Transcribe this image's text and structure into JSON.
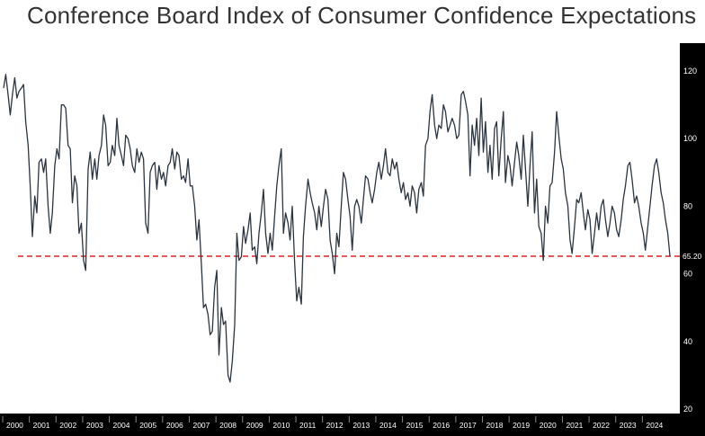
{
  "chart_data": {
    "type": "line",
    "title": "Conference Board Index of Consumer Confidence Expectations",
    "xlabel": "",
    "ylabel": "",
    "x_ticks": [
      "2000",
      "2001",
      "2002",
      "2003",
      "2004",
      "2005",
      "2006",
      "2007",
      "2008",
      "2009",
      "2010",
      "2011",
      "2012",
      "2013",
      "2014",
      "2015",
      "2016",
      "2017",
      "2018",
      "2019",
      "2020",
      "2021",
      "2022",
      "2023",
      "2024"
    ],
    "y_ticks": [
      20,
      40,
      60,
      80,
      100,
      120
    ],
    "ylim": [
      20,
      124
    ],
    "xlim": [
      2000.0,
      2025.2
    ],
    "grid": false,
    "reference_line": {
      "value": 65.2,
      "label": "65.20",
      "color": "#e02020",
      "style": "dashed"
    },
    "series": [
      {
        "color": "#2b3440",
        "points": [
          [
            2000.0,
            115
          ],
          [
            2000.08,
            119
          ],
          [
            2000.17,
            113
          ],
          [
            2000.25,
            107
          ],
          [
            2000.33,
            113
          ],
          [
            2000.42,
            118
          ],
          [
            2000.5,
            112
          ],
          [
            2000.58,
            114
          ],
          [
            2000.67,
            115
          ],
          [
            2000.75,
            116
          ],
          [
            2000.83,
            105
          ],
          [
            2000.92,
            98
          ],
          [
            2001.0,
            86
          ],
          [
            2001.08,
            71
          ],
          [
            2001.17,
            83
          ],
          [
            2001.25,
            78
          ],
          [
            2001.33,
            93
          ],
          [
            2001.42,
            94
          ],
          [
            2001.5,
            90
          ],
          [
            2001.58,
            94
          ],
          [
            2001.67,
            80
          ],
          [
            2001.75,
            72
          ],
          [
            2001.83,
            78
          ],
          [
            2001.92,
            92
          ],
          [
            2002.0,
            97
          ],
          [
            2002.08,
            94
          ],
          [
            2002.17,
            110
          ],
          [
            2002.25,
            110
          ],
          [
            2002.33,
            109
          ],
          [
            2002.42,
            98
          ],
          [
            2002.5,
            97
          ],
          [
            2002.58,
            81
          ],
          [
            2002.67,
            89
          ],
          [
            2002.75,
            86
          ],
          [
            2002.83,
            72
          ],
          [
            2002.92,
            75
          ],
          [
            2003.0,
            64
          ],
          [
            2003.08,
            61
          ],
          [
            2003.17,
            91
          ],
          [
            2003.25,
            96
          ],
          [
            2003.33,
            88
          ],
          [
            2003.42,
            94
          ],
          [
            2003.5,
            88
          ],
          [
            2003.58,
            95
          ],
          [
            2003.67,
            98
          ],
          [
            2003.75,
            107
          ],
          [
            2003.83,
            104
          ],
          [
            2003.92,
            92
          ],
          [
            2004.0,
            93
          ],
          [
            2004.08,
            98
          ],
          [
            2004.17,
            95
          ],
          [
            2004.25,
            106
          ],
          [
            2004.33,
            98
          ],
          [
            2004.42,
            95
          ],
          [
            2004.5,
            92
          ],
          [
            2004.58,
            101
          ],
          [
            2004.67,
            100
          ],
          [
            2004.75,
            97
          ],
          [
            2004.83,
            92
          ],
          [
            2004.92,
            90
          ],
          [
            2005.0,
            97
          ],
          [
            2005.08,
            93
          ],
          [
            2005.17,
            96
          ],
          [
            2005.25,
            94
          ],
          [
            2005.33,
            75
          ],
          [
            2005.42,
            72
          ],
          [
            2005.5,
            90
          ],
          [
            2005.58,
            92
          ],
          [
            2005.67,
            93
          ],
          [
            2005.75,
            85
          ],
          [
            2005.83,
            92
          ],
          [
            2005.92,
            88
          ],
          [
            2006.0,
            90
          ],
          [
            2006.08,
            86
          ],
          [
            2006.17,
            92
          ],
          [
            2006.25,
            93
          ],
          [
            2006.33,
            97
          ],
          [
            2006.42,
            91
          ],
          [
            2006.5,
            96
          ],
          [
            2006.58,
            95
          ],
          [
            2006.67,
            88
          ],
          [
            2006.75,
            89
          ],
          [
            2006.83,
            87
          ],
          [
            2006.92,
            94
          ],
          [
            2007.0,
            86
          ],
          [
            2007.08,
            86
          ],
          [
            2007.17,
            80
          ],
          [
            2007.25,
            70
          ],
          [
            2007.33,
            76
          ],
          [
            2007.42,
            63
          ],
          [
            2007.5,
            50
          ],
          [
            2007.58,
            51
          ],
          [
            2007.67,
            48
          ],
          [
            2007.75,
            42
          ],
          [
            2007.83,
            43
          ],
          [
            2007.92,
            56
          ],
          [
            2008.0,
            61
          ],
          [
            2008.08,
            36
          ],
          [
            2008.17,
            50
          ],
          [
            2008.25,
            45
          ],
          [
            2008.33,
            46
          ],
          [
            2008.42,
            30
          ],
          [
            2008.5,
            28
          ],
          [
            2008.58,
            34
          ],
          [
            2008.67,
            45
          ],
          [
            2008.75,
            72
          ],
          [
            2008.83,
            64
          ],
          [
            2008.92,
            65
          ],
          [
            2009.0,
            74
          ],
          [
            2009.08,
            69
          ],
          [
            2009.17,
            73
          ],
          [
            2009.25,
            78
          ],
          [
            2009.33,
            67
          ],
          [
            2009.42,
            68
          ],
          [
            2009.5,
            63
          ],
          [
            2009.58,
            72
          ],
          [
            2009.67,
            78
          ],
          [
            2009.75,
            85
          ],
          [
            2009.83,
            72
          ],
          [
            2009.92,
            66
          ],
          [
            2010.0,
            72
          ],
          [
            2010.08,
            67
          ],
          [
            2010.17,
            77
          ],
          [
            2010.25,
            86
          ],
          [
            2010.33,
            92
          ],
          [
            2010.42,
            97
          ],
          [
            2010.5,
            72
          ],
          [
            2010.58,
            78
          ],
          [
            2010.67,
            75
          ],
          [
            2010.75,
            70
          ],
          [
            2010.83,
            80
          ],
          [
            2010.92,
            63
          ],
          [
            2011.0,
            52
          ],
          [
            2011.08,
            56
          ],
          [
            2011.17,
            51
          ],
          [
            2011.25,
            71
          ],
          [
            2011.33,
            80
          ],
          [
            2011.42,
            88
          ],
          [
            2011.5,
            84
          ],
          [
            2011.58,
            81
          ],
          [
            2011.67,
            78
          ],
          [
            2011.75,
            73
          ],
          [
            2011.83,
            80
          ],
          [
            2011.92,
            74
          ],
          [
            2012.0,
            80
          ],
          [
            2012.08,
            85
          ],
          [
            2012.17,
            82
          ],
          [
            2012.25,
            70
          ],
          [
            2012.33,
            66
          ],
          [
            2012.42,
            60
          ],
          [
            2012.5,
            72
          ],
          [
            2012.58,
            68
          ],
          [
            2012.67,
            80
          ],
          [
            2012.75,
            90
          ],
          [
            2012.83,
            88
          ],
          [
            2012.92,
            82
          ],
          [
            2013.0,
            77
          ],
          [
            2013.08,
            67
          ],
          [
            2013.17,
            80
          ],
          [
            2013.25,
            82
          ],
          [
            2013.33,
            80
          ],
          [
            2013.42,
            75
          ],
          [
            2013.5,
            82
          ],
          [
            2013.58,
            89
          ],
          [
            2013.67,
            88
          ],
          [
            2013.75,
            84
          ],
          [
            2013.83,
            81
          ],
          [
            2013.92,
            85
          ],
          [
            2014.0,
            90
          ],
          [
            2014.08,
            93
          ],
          [
            2014.17,
            88
          ],
          [
            2014.25,
            92
          ],
          [
            2014.33,
            97
          ],
          [
            2014.42,
            90
          ],
          [
            2014.5,
            89
          ],
          [
            2014.58,
            94
          ],
          [
            2014.67,
            91
          ],
          [
            2014.75,
            93
          ],
          [
            2014.83,
            88
          ],
          [
            2014.92,
            84
          ],
          [
            2015.0,
            87
          ],
          [
            2015.08,
            82
          ],
          [
            2015.17,
            84
          ],
          [
            2015.25,
            80
          ],
          [
            2015.33,
            86
          ],
          [
            2015.42,
            84
          ],
          [
            2015.5,
            78
          ],
          [
            2015.58,
            85
          ],
          [
            2015.67,
            87
          ],
          [
            2015.75,
            83
          ],
          [
            2015.83,
            98
          ],
          [
            2015.92,
            100
          ],
          [
            2016.0,
            108
          ],
          [
            2016.08,
            113
          ],
          [
            2016.17,
            104
          ],
          [
            2016.25,
            100
          ],
          [
            2016.33,
            104
          ],
          [
            2016.42,
            103
          ],
          [
            2016.5,
            110
          ],
          [
            2016.58,
            108
          ],
          [
            2016.67,
            102
          ],
          [
            2016.75,
            104
          ],
          [
            2016.83,
            106
          ],
          [
            2016.92,
            104
          ],
          [
            2017.0,
            100
          ],
          [
            2017.08,
            101
          ],
          [
            2017.17,
            113
          ],
          [
            2017.25,
            114
          ],
          [
            2017.33,
            111
          ],
          [
            2017.42,
            107
          ],
          [
            2017.5,
            89
          ],
          [
            2017.58,
            104
          ],
          [
            2017.67,
            98
          ],
          [
            2017.75,
            106
          ],
          [
            2017.83,
            95
          ],
          [
            2017.92,
            112
          ],
          [
            2018.0,
            96
          ],
          [
            2018.08,
            105
          ],
          [
            2018.17,
            90
          ],
          [
            2018.25,
            98
          ],
          [
            2018.33,
            88
          ],
          [
            2018.42,
            103
          ],
          [
            2018.5,
            105
          ],
          [
            2018.58,
            89
          ],
          [
            2018.67,
            100
          ],
          [
            2018.75,
            108
          ],
          [
            2018.83,
            87
          ],
          [
            2018.92,
            95
          ],
          [
            2019.0,
            92
          ],
          [
            2019.08,
            86
          ],
          [
            2019.17,
            93
          ],
          [
            2019.25,
            99
          ],
          [
            2019.33,
            95
          ],
          [
            2019.42,
            88
          ],
          [
            2019.5,
            101
          ],
          [
            2019.58,
            91
          ],
          [
            2019.67,
            80
          ],
          [
            2019.75,
            92
          ],
          [
            2019.83,
            102
          ],
          [
            2019.92,
            78
          ],
          [
            2020.0,
            88
          ],
          [
            2020.08,
            74
          ],
          [
            2020.17,
            72
          ],
          [
            2020.25,
            64
          ],
          [
            2020.33,
            80
          ],
          [
            2020.42,
            75
          ],
          [
            2020.5,
            86
          ],
          [
            2020.58,
            87
          ],
          [
            2020.67,
            96
          ],
          [
            2020.75,
            108
          ],
          [
            2020.83,
            101
          ],
          [
            2020.92,
            94
          ],
          [
            2021.0,
            91
          ],
          [
            2021.08,
            84
          ],
          [
            2021.17,
            80
          ],
          [
            2021.25,
            70
          ],
          [
            2021.33,
            66
          ],
          [
            2021.42,
            74
          ],
          [
            2021.5,
            82
          ],
          [
            2021.58,
            81
          ],
          [
            2021.67,
            84
          ],
          [
            2021.75,
            78
          ],
          [
            2021.83,
            73
          ],
          [
            2021.92,
            79
          ],
          [
            2022.0,
            76
          ],
          [
            2022.08,
            66
          ],
          [
            2022.17,
            72
          ],
          [
            2022.25,
            78
          ],
          [
            2022.33,
            73
          ],
          [
            2022.42,
            80
          ],
          [
            2022.5,
            82
          ],
          [
            2022.58,
            76
          ],
          [
            2022.67,
            71
          ],
          [
            2022.75,
            75
          ],
          [
            2022.83,
            80
          ],
          [
            2022.92,
            78
          ],
          [
            2023.0,
            73
          ],
          [
            2023.08,
            71
          ],
          [
            2023.17,
            76
          ],
          [
            2023.25,
            82
          ],
          [
            2023.33,
            86
          ],
          [
            2023.42,
            92
          ],
          [
            2023.5,
            93
          ],
          [
            2023.58,
            88
          ],
          [
            2023.67,
            81
          ],
          [
            2023.75,
            83
          ],
          [
            2023.83,
            80
          ],
          [
            2023.92,
            75
          ],
          [
            2024.0,
            72
          ],
          [
            2024.08,
            67
          ],
          [
            2024.17,
            74
          ],
          [
            2024.25,
            80
          ],
          [
            2024.33,
            86
          ],
          [
            2024.42,
            92
          ],
          [
            2024.5,
            94
          ],
          [
            2024.58,
            90
          ],
          [
            2024.67,
            84
          ],
          [
            2024.75,
            81
          ],
          [
            2024.83,
            76
          ],
          [
            2024.92,
            72
          ],
          [
            2025.0,
            65.2
          ]
        ]
      }
    ]
  }
}
